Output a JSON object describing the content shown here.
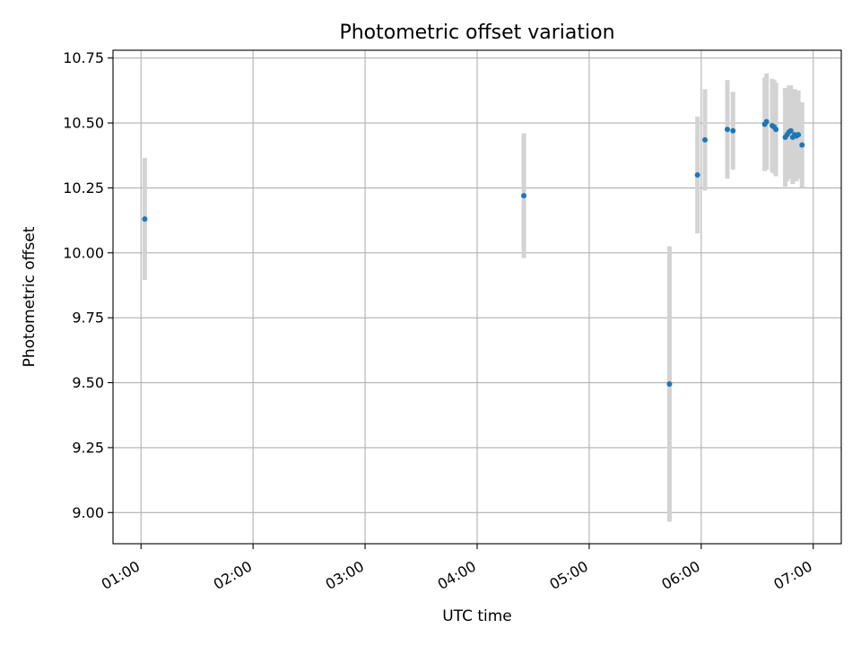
{
  "chart_data": {
    "type": "scatter",
    "title": "Photometric offset variation",
    "xlabel": "UTC time",
    "ylabel": "Photometric offset",
    "xlim": [
      "00:45",
      "07:15"
    ],
    "ylim": [
      8.88,
      10.78
    ],
    "x_ticks": [
      "01:00",
      "02:00",
      "03:00",
      "04:00",
      "05:00",
      "06:00",
      "07:00"
    ],
    "y_ticks": [
      "9.00",
      "9.25",
      "9.50",
      "9.75",
      "10.00",
      "10.25",
      "10.50",
      "10.75"
    ],
    "grid": true,
    "marker_color": "#1f77b4",
    "errorbar_color": "#d3d3d3",
    "series": [
      {
        "points": [
          {
            "x": "01:02",
            "y": 10.13,
            "err": 0.235
          },
          {
            "x": "04:25",
            "y": 10.22,
            "err": 0.24
          },
          {
            "x": "05:43",
            "y": 9.495,
            "err": 0.53
          },
          {
            "x": "05:58",
            "y": 10.3,
            "err": 0.225
          },
          {
            "x": "06:02",
            "y": 10.435,
            "err": 0.195
          },
          {
            "x": "06:14",
            "y": 10.475,
            "err": 0.19
          },
          {
            "x": "06:17",
            "y": 10.47,
            "err": 0.15
          },
          {
            "x": "06:34",
            "y": 10.495,
            "err": 0.18
          },
          {
            "x": "06:35",
            "y": 10.505,
            "err": 0.185
          },
          {
            "x": "06:38",
            "y": 10.49,
            "err": 0.18
          },
          {
            "x": "06:39",
            "y": 10.485,
            "err": 0.18
          },
          {
            "x": "06:40",
            "y": 10.475,
            "err": 0.18
          },
          {
            "x": "06:45",
            "y": 10.445,
            "err": 0.19
          },
          {
            "x": "06:46",
            "y": 10.455,
            "err": 0.18
          },
          {
            "x": "06:47",
            "y": 10.465,
            "err": 0.18
          },
          {
            "x": "06:48",
            "y": 10.47,
            "err": 0.175
          },
          {
            "x": "06:49",
            "y": 10.445,
            "err": 0.18
          },
          {
            "x": "06:50",
            "y": 10.455,
            "err": 0.175
          },
          {
            "x": "06:51",
            "y": 10.45,
            "err": 0.175
          },
          {
            "x": "06:52",
            "y": 10.455,
            "err": 0.17
          },
          {
            "x": "06:54",
            "y": 10.415,
            "err": 0.165
          }
        ]
      }
    ]
  }
}
